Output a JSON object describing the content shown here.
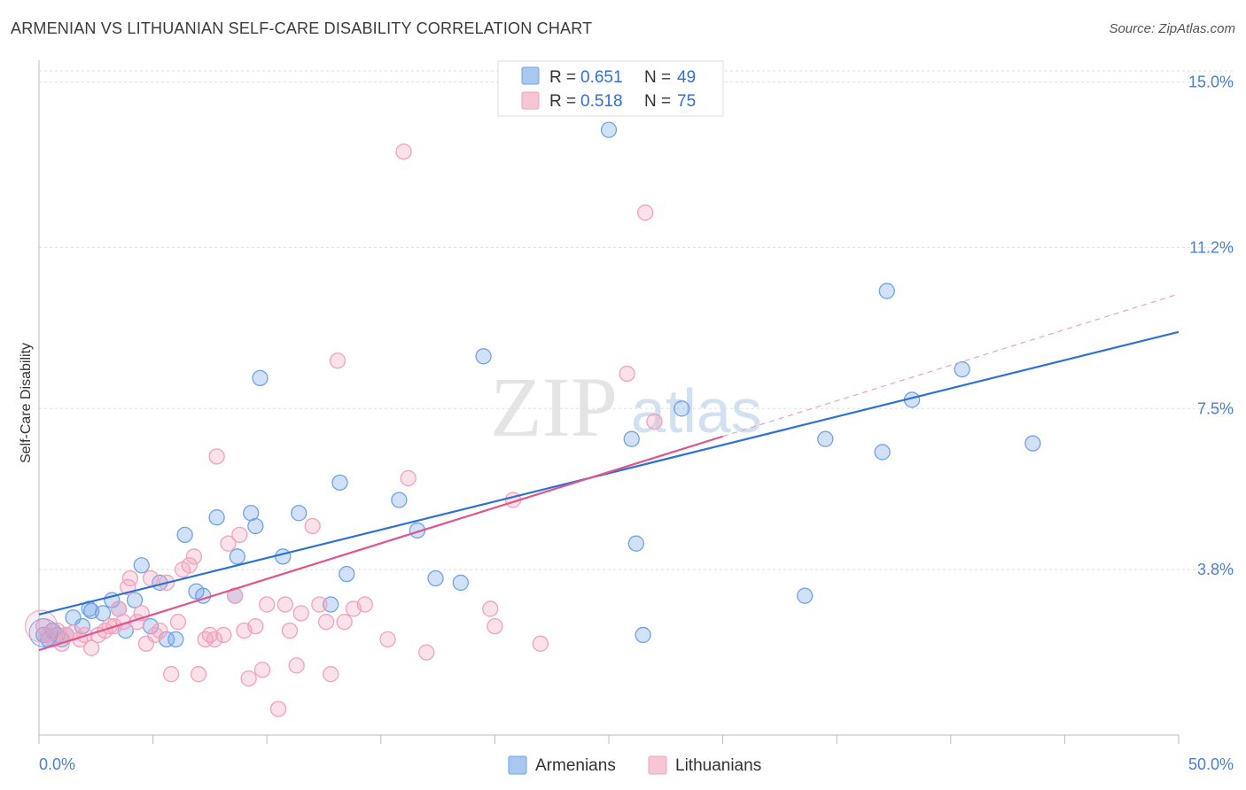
{
  "header": {
    "title": "ARMENIAN VS LITHUANIAN SELF-CARE DISABILITY CORRELATION CHART",
    "source": "Source: ZipAtlas.com"
  },
  "watermark": {
    "zip": "ZIP",
    "atlas": "atlas"
  },
  "legend": {
    "r_label": "R =",
    "n_label": "N =",
    "items": [
      {
        "r": "0.651",
        "n": "49",
        "color": "#a9c8f0"
      },
      {
        "r": "0.518",
        "n": "75",
        "color": "#f6b9cb"
      }
    ]
  },
  "bottom_legend": [
    "Armenians",
    "Lithuanians"
  ],
  "chart_data": {
    "type": "scatter",
    "title": "ARMENIAN VS LITHUANIAN SELF-CARE DISABILITY CORRELATION CHART",
    "xlabel": "",
    "ylabel": "Self-Care Disability",
    "xlim": [
      0,
      50
    ],
    "ylim": [
      0,
      15.5
    ],
    "x_tick_labels": [
      "0.0%",
      "50.0%"
    ],
    "y_ticks": [
      3.8,
      7.5,
      11.2,
      15.0
    ],
    "y_tick_labels": [
      "3.8%",
      "7.5%",
      "11.2%",
      "15.0%"
    ],
    "grid": true,
    "legend_position": "top-center",
    "series": [
      {
        "name": "Armenians",
        "color": "#6fa3e8",
        "line_color": "#2d72d2",
        "trend": {
          "x": [
            0,
            50
          ],
          "y": [
            2.77,
            9.26
          ]
        },
        "points": [
          [
            0.2,
            2.3
          ],
          [
            0.4,
            2.2
          ],
          [
            0.6,
            2.4
          ],
          [
            0.8,
            2.3
          ],
          [
            1.0,
            2.2
          ],
          [
            1.2,
            2.3
          ],
          [
            1.5,
            2.7
          ],
          [
            1.9,
            2.5
          ],
          [
            2.2,
            2.9
          ],
          [
            2.3,
            2.85
          ],
          [
            2.8,
            2.8
          ],
          [
            3.2,
            3.1
          ],
          [
            3.5,
            2.9
          ],
          [
            3.8,
            2.4
          ],
          [
            4.2,
            3.1
          ],
          [
            4.5,
            3.9
          ],
          [
            4.9,
            2.5
          ],
          [
            5.3,
            3.5
          ],
          [
            5.6,
            2.2
          ],
          [
            6.0,
            2.2
          ],
          [
            6.4,
            4.6
          ],
          [
            6.9,
            3.3
          ],
          [
            7.2,
            3.2
          ],
          [
            7.8,
            5.0
          ],
          [
            8.6,
            3.2
          ],
          [
            8.7,
            4.1
          ],
          [
            9.3,
            5.1
          ],
          [
            9.5,
            4.8
          ],
          [
            9.7,
            8.2
          ],
          [
            10.7,
            4.1
          ],
          [
            11.4,
            5.1
          ],
          [
            12.8,
            3.0
          ],
          [
            13.2,
            5.8
          ],
          [
            13.5,
            3.7
          ],
          [
            15.8,
            5.4
          ],
          [
            16.6,
            4.7
          ],
          [
            17.4,
            3.6
          ],
          [
            18.5,
            3.5
          ],
          [
            19.5,
            8.7
          ],
          [
            25.0,
            13.9
          ],
          [
            26.0,
            6.8
          ],
          [
            26.2,
            4.4
          ],
          [
            26.5,
            2.3
          ],
          [
            28.2,
            7.5
          ],
          [
            33.6,
            3.2
          ],
          [
            34.5,
            6.8
          ],
          [
            37.0,
            6.5
          ],
          [
            37.2,
            10.2
          ],
          [
            38.3,
            7.7
          ],
          [
            40.5,
            8.4
          ],
          [
            43.6,
            6.7
          ]
        ]
      },
      {
        "name": "Lithuanians",
        "color": "#f2a2bb",
        "line_color": "#e0558a",
        "trend": {
          "x": [
            0,
            30
          ],
          "y": [
            1.95,
            6.86
          ]
        },
        "trend_dashed": {
          "x": [
            30,
            50
          ],
          "y": [
            6.86,
            10.13
          ]
        },
        "points": [
          [
            0.2,
            2.5
          ],
          [
            0.4,
            2.3
          ],
          [
            0.6,
            2.2
          ],
          [
            0.8,
            2.4
          ],
          [
            1.0,
            2.1
          ],
          [
            1.2,
            2.3
          ],
          [
            1.5,
            2.35
          ],
          [
            1.8,
            2.2
          ],
          [
            2.0,
            2.3
          ],
          [
            2.3,
            2.0
          ],
          [
            2.6,
            2.3
          ],
          [
            2.9,
            2.4
          ],
          [
            3.1,
            2.5
          ],
          [
            3.3,
            2.5
          ],
          [
            3.5,
            2.9
          ],
          [
            3.7,
            2.6
          ],
          [
            3.9,
            3.4
          ],
          [
            4.0,
            3.6
          ],
          [
            4.3,
            2.6
          ],
          [
            4.5,
            2.8
          ],
          [
            4.7,
            2.1
          ],
          [
            4.9,
            3.6
          ],
          [
            5.1,
            2.3
          ],
          [
            5.3,
            2.4
          ],
          [
            5.6,
            3.5
          ],
          [
            5.8,
            1.4
          ],
          [
            6.1,
            2.6
          ],
          [
            6.3,
            3.8
          ],
          [
            6.6,
            3.9
          ],
          [
            6.8,
            4.1
          ],
          [
            7.0,
            1.4
          ],
          [
            7.3,
            2.2
          ],
          [
            7.5,
            2.3
          ],
          [
            7.7,
            2.2
          ],
          [
            7.8,
            6.4
          ],
          [
            8.1,
            2.3
          ],
          [
            8.3,
            4.4
          ],
          [
            8.6,
            3.2
          ],
          [
            8.8,
            4.6
          ],
          [
            9.0,
            2.4
          ],
          [
            9.2,
            1.3
          ],
          [
            9.5,
            2.5
          ],
          [
            9.8,
            1.5
          ],
          [
            10.0,
            3.0
          ],
          [
            10.5,
            0.6
          ],
          [
            10.8,
            3.0
          ],
          [
            11.0,
            2.4
          ],
          [
            11.3,
            1.6
          ],
          [
            11.5,
            2.8
          ],
          [
            12.0,
            4.8
          ],
          [
            12.3,
            3.0
          ],
          [
            12.6,
            2.6
          ],
          [
            12.8,
            1.4
          ],
          [
            13.1,
            8.6
          ],
          [
            13.4,
            2.6
          ],
          [
            13.8,
            2.9
          ],
          [
            14.3,
            3.0
          ],
          [
            15.3,
            2.2
          ],
          [
            16.0,
            13.4
          ],
          [
            16.2,
            5.9
          ],
          [
            17.0,
            1.9
          ],
          [
            19.8,
            2.9
          ],
          [
            20.0,
            2.5
          ],
          [
            20.8,
            5.4
          ],
          [
            22.0,
            2.1
          ],
          [
            25.8,
            8.3
          ],
          [
            26.6,
            12.0
          ],
          [
            27.0,
            7.2
          ]
        ]
      }
    ]
  }
}
